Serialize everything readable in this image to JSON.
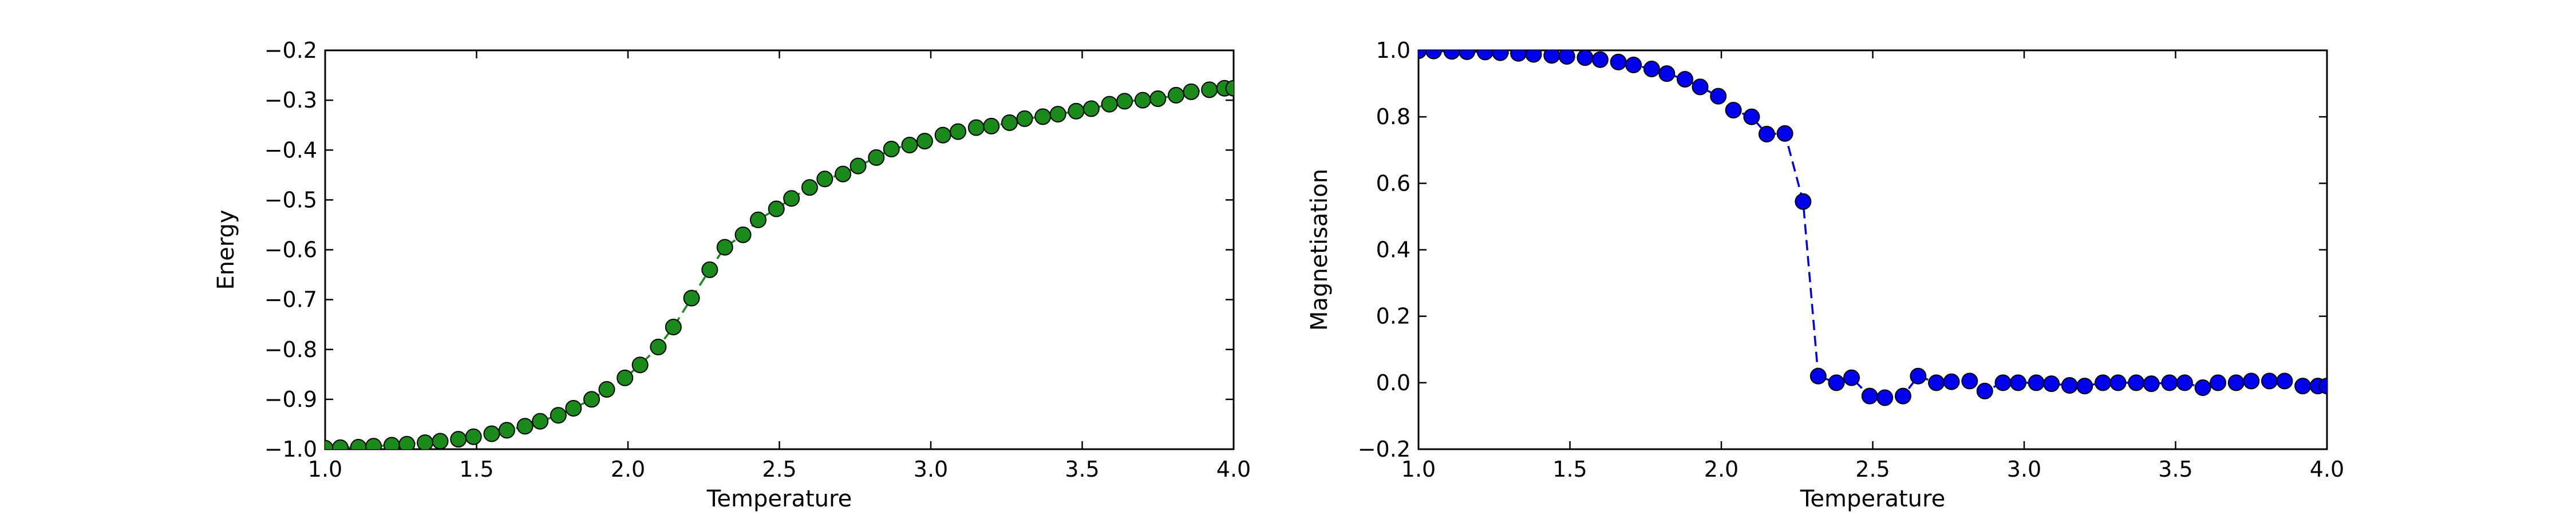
{
  "chart_data": [
    {
      "type": "line",
      "title": "",
      "xlabel": "Temperature",
      "ylabel": "Energy",
      "xlim": [
        1.0,
        4.0
      ],
      "ylim": [
        -1.0,
        -0.2
      ],
      "xticks": [
        1.0,
        1.5,
        2.0,
        2.5,
        3.0,
        3.5,
        4.0
      ],
      "xtick_labels": [
        "1.0",
        "1.5",
        "2.0",
        "2.5",
        "3.0",
        "3.5",
        "4.0"
      ],
      "yticks": [
        -1.0,
        -0.9,
        -0.8,
        -0.7,
        -0.6,
        -0.5,
        -0.4,
        -0.3,
        -0.2
      ],
      "ytick_labels": [
        "−1.0",
        "−0.9",
        "−0.8",
        "−0.7",
        "−0.6",
        "−0.5",
        "−0.4",
        "−0.3",
        "−0.2"
      ],
      "grid": false,
      "legend": "none",
      "line_style": "dashed",
      "marker": "circle",
      "color": "#1a8a1a",
      "series": [
        {
          "x": [
            1.0,
            1.05,
            1.11,
            1.16,
            1.22,
            1.27,
            1.33,
            1.38,
            1.44,
            1.49,
            1.55,
            1.6,
            1.66,
            1.71,
            1.77,
            1.82,
            1.88,
            1.93,
            1.99,
            2.04,
            2.1,
            2.15,
            2.21,
            2.27,
            2.32,
            2.38,
            2.43,
            2.49,
            2.54,
            2.6,
            2.65,
            2.71,
            2.76,
            2.82,
            2.87,
            2.93,
            2.98,
            3.04,
            3.09,
            3.15,
            3.2,
            3.26,
            3.31,
            3.37,
            3.42,
            3.48,
            3.53,
            3.59,
            3.64,
            3.7,
            3.75,
            3.81,
            3.86,
            3.92,
            3.97,
            4.0
          ],
          "y": [
            -0.998,
            -0.997,
            -0.996,
            -0.994,
            -0.992,
            -0.99,
            -0.987,
            -0.984,
            -0.98,
            -0.975,
            -0.969,
            -0.962,
            -0.954,
            -0.944,
            -0.932,
            -0.918,
            -0.9,
            -0.88,
            -0.857,
            -0.831,
            -0.795,
            -0.755,
            -0.697,
            -0.64,
            -0.595,
            -0.57,
            -0.54,
            -0.518,
            -0.497,
            -0.475,
            -0.458,
            -0.448,
            -0.432,
            -0.415,
            -0.398,
            -0.39,
            -0.382,
            -0.37,
            -0.363,
            -0.355,
            -0.352,
            -0.345,
            -0.337,
            -0.333,
            -0.328,
            -0.322,
            -0.317,
            -0.308,
            -0.302,
            -0.3,
            -0.297,
            -0.29,
            -0.283,
            -0.279,
            -0.276,
            -0.276
          ]
        }
      ]
    },
    {
      "type": "line",
      "title": "",
      "xlabel": "Temperature",
      "ylabel": "Magnetisation",
      "xlim": [
        1.0,
        4.0
      ],
      "ylim": [
        -0.2,
        1.0
      ],
      "xticks": [
        1.0,
        1.5,
        2.0,
        2.5,
        3.0,
        3.5,
        4.0
      ],
      "xtick_labels": [
        "1.0",
        "1.5",
        "2.0",
        "2.5",
        "3.0",
        "3.5",
        "4.0"
      ],
      "yticks": [
        -0.2,
        0.0,
        0.2,
        0.4,
        0.6,
        0.8,
        1.0
      ],
      "ytick_labels": [
        "−0.2",
        "0.0",
        "0.2",
        "0.4",
        "0.6",
        "0.8",
        "1.0"
      ],
      "grid": false,
      "legend": "none",
      "line_style": "dashed",
      "marker": "circle",
      "color": "#0000ee",
      "series": [
        {
          "x": [
            1.0,
            1.05,
            1.11,
            1.16,
            1.22,
            1.27,
            1.33,
            1.38,
            1.44,
            1.49,
            1.55,
            1.6,
            1.66,
            1.71,
            1.77,
            1.82,
            1.88,
            1.93,
            1.99,
            2.04,
            2.1,
            2.15,
            2.21,
            2.27,
            2.32,
            2.38,
            2.43,
            2.49,
            2.54,
            2.6,
            2.65,
            2.71,
            2.76,
            2.82,
            2.87,
            2.93,
            2.98,
            3.04,
            3.09,
            3.15,
            3.2,
            3.26,
            3.31,
            3.37,
            3.42,
            3.48,
            3.53,
            3.59,
            3.64,
            3.7,
            3.75,
            3.81,
            3.86,
            3.92,
            3.97,
            4.0
          ],
          "y": [
            0.999,
            0.998,
            0.997,
            0.996,
            0.995,
            0.993,
            0.991,
            0.988,
            0.985,
            0.982,
            0.978,
            0.972,
            0.965,
            0.956,
            0.944,
            0.93,
            0.913,
            0.89,
            0.862,
            0.82,
            0.8,
            0.748,
            0.75,
            0.545,
            0.02,
            0.0,
            0.015,
            -0.04,
            -0.045,
            -0.04,
            0.02,
            0.0,
            0.003,
            0.005,
            -0.025,
            0.0,
            0.0,
            0.0,
            -0.003,
            -0.008,
            -0.01,
            0.0,
            0.0,
            0.0,
            -0.003,
            0.0,
            0.0,
            -0.015,
            0.0,
            0.0,
            0.005,
            0.005,
            0.005,
            -0.01,
            -0.01,
            -0.01
          ]
        }
      ]
    }
  ]
}
